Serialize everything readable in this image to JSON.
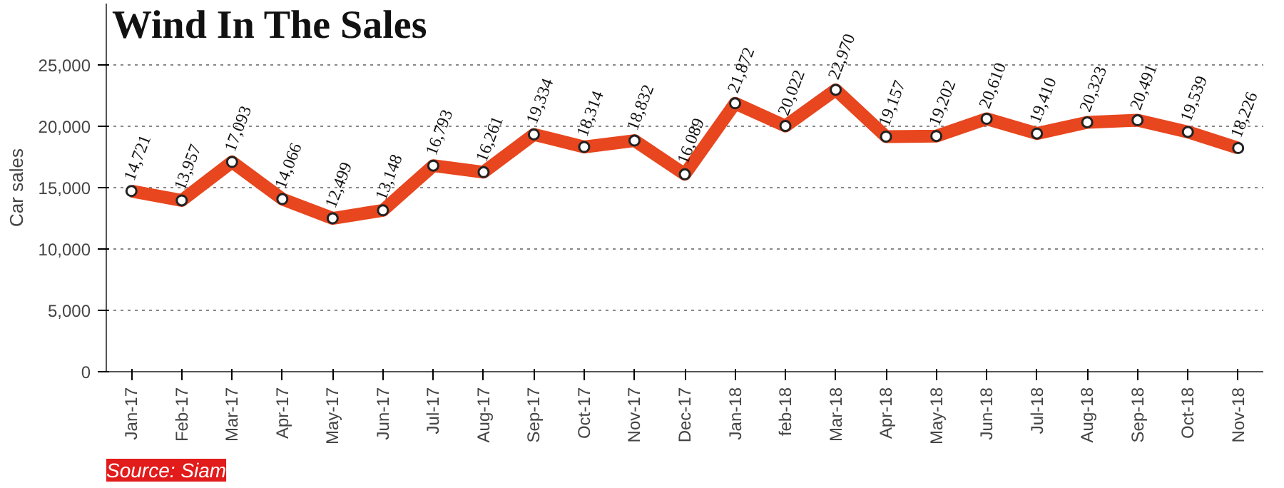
{
  "chart_data": {
    "type": "line",
    "title": "Wind In The Sales",
    "ylabel": "Car sales",
    "categories": [
      "Jan-17",
      "Feb-17",
      "Mar-17",
      "Apr-17",
      "May-17",
      "Jun-17",
      "Jul-17",
      "Aug-17",
      "Sep-17",
      "Oct-17",
      "Nov-17",
      "Dec-17",
      "Jan-18",
      "feb-18",
      "Mar-18",
      "Apr-18",
      "May-18",
      "Jun-18",
      "Jul-18",
      "Aug-18",
      "Sep-18",
      "Oct-18",
      "Nov-18"
    ],
    "series": [
      {
        "color": "#e8461e",
        "values": [
          14721,
          13957,
          17093,
          14066,
          12499,
          13148,
          16793,
          16261,
          19334,
          18314,
          18832,
          16089,
          21872,
          20022,
          22970,
          19157,
          19202,
          20610,
          19410,
          20323,
          20491,
          19539,
          18226
        ],
        "value_labels": [
          "14,721",
          "13,957",
          "17,093",
          "14,066",
          "12,499",
          "13,148",
          "16,793",
          "16,261",
          "19,334",
          "18,314",
          "18,832",
          "16,089",
          "21,872",
          "20,022",
          "22,970",
          "19,157",
          "19,202",
          "20,610",
          "19,410",
          "20,323",
          "20,491",
          "19,539",
          "18,226"
        ]
      }
    ],
    "ylim": [
      0,
      30000
    ],
    "yticks": [
      {
        "value": 0,
        "label": "0"
      },
      {
        "value": 5000,
        "label": "5,000"
      },
      {
        "value": 10000,
        "label": "10,000"
      },
      {
        "value": 15000,
        "label": "15,000"
      },
      {
        "value": 20000,
        "label": "20,000"
      },
      {
        "value": 25000,
        "label": "25,000"
      }
    ],
    "grid": "y",
    "marker": "circle",
    "line_style": "solid",
    "annotations": [
      "Source: Siam"
    ]
  }
}
